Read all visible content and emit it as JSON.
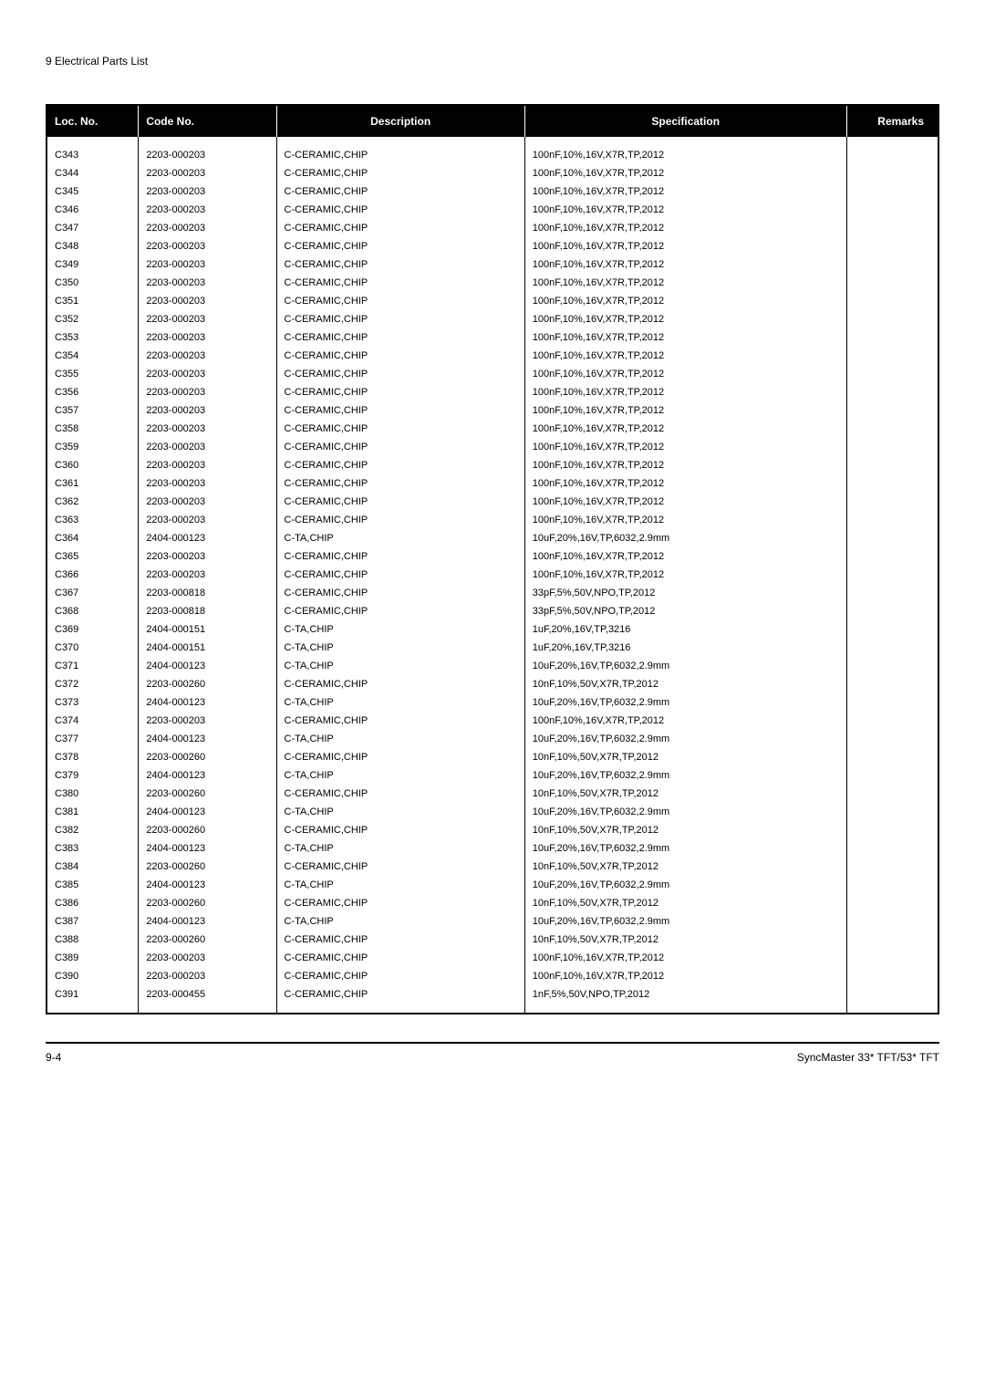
{
  "page_title": "9 Electrical Parts List",
  "table": {
    "headers": {
      "loc": "Loc. No.",
      "code": "Code No.",
      "desc": "Description",
      "spec": "Specification",
      "remarks": "Remarks"
    },
    "rows": [
      {
        "loc": "C343",
        "code": "2203-000203",
        "desc": "C-CERAMIC,CHIP",
        "spec": "100nF,10%,16V,X7R,TP,2012",
        "remarks": ""
      },
      {
        "loc": "C344",
        "code": "2203-000203",
        "desc": "C-CERAMIC,CHIP",
        "spec": "100nF,10%,16V,X7R,TP,2012",
        "remarks": ""
      },
      {
        "loc": "C345",
        "code": "2203-000203",
        "desc": "C-CERAMIC,CHIP",
        "spec": "100nF,10%,16V,X7R,TP,2012",
        "remarks": ""
      },
      {
        "loc": "C346",
        "code": "2203-000203",
        "desc": "C-CERAMIC,CHIP",
        "spec": "100nF,10%,16V,X7R,TP,2012",
        "remarks": ""
      },
      {
        "loc": "C347",
        "code": "2203-000203",
        "desc": "C-CERAMIC,CHIP",
        "spec": "100nF,10%,16V,X7R,TP,2012",
        "remarks": ""
      },
      {
        "loc": "C348",
        "code": "2203-000203",
        "desc": "C-CERAMIC,CHIP",
        "spec": "100nF,10%,16V,X7R,TP,2012",
        "remarks": ""
      },
      {
        "loc": "C349",
        "code": "2203-000203",
        "desc": "C-CERAMIC,CHIP",
        "spec": "100nF,10%,16V,X7R,TP,2012",
        "remarks": ""
      },
      {
        "loc": "C350",
        "code": "2203-000203",
        "desc": "C-CERAMIC,CHIP",
        "spec": "100nF,10%,16V,X7R,TP,2012",
        "remarks": ""
      },
      {
        "loc": "C351",
        "code": "2203-000203",
        "desc": "C-CERAMIC,CHIP",
        "spec": "100nF,10%,16V,X7R,TP,2012",
        "remarks": ""
      },
      {
        "loc": "C352",
        "code": "2203-000203",
        "desc": "C-CERAMIC,CHIP",
        "spec": "100nF,10%,16V,X7R,TP,2012",
        "remarks": ""
      },
      {
        "loc": "C353",
        "code": "2203-000203",
        "desc": "C-CERAMIC,CHIP",
        "spec": "100nF,10%,16V,X7R,TP,2012",
        "remarks": ""
      },
      {
        "loc": "C354",
        "code": "2203-000203",
        "desc": "C-CERAMIC,CHIP",
        "spec": "100nF,10%,16V,X7R,TP,2012",
        "remarks": ""
      },
      {
        "loc": "C355",
        "code": "2203-000203",
        "desc": "C-CERAMIC,CHIP",
        "spec": "100nF,10%,16V,X7R,TP,2012",
        "remarks": ""
      },
      {
        "loc": "C356",
        "code": "2203-000203",
        "desc": "C-CERAMIC,CHIP",
        "spec": "100nF,10%,16V,X7R,TP,2012",
        "remarks": ""
      },
      {
        "loc": "C357",
        "code": "2203-000203",
        "desc": "C-CERAMIC,CHIP",
        "spec": "100nF,10%,16V,X7R,TP,2012",
        "remarks": ""
      },
      {
        "loc": "C358",
        "code": "2203-000203",
        "desc": "C-CERAMIC,CHIP",
        "spec": "100nF,10%,16V,X7R,TP,2012",
        "remarks": ""
      },
      {
        "loc": "C359",
        "code": "2203-000203",
        "desc": "C-CERAMIC,CHIP",
        "spec": "100nF,10%,16V,X7R,TP,2012",
        "remarks": ""
      },
      {
        "loc": "C360",
        "code": "2203-000203",
        "desc": "C-CERAMIC,CHIP",
        "spec": "100nF,10%,16V,X7R,TP,2012",
        "remarks": ""
      },
      {
        "loc": "C361",
        "code": "2203-000203",
        "desc": "C-CERAMIC,CHIP",
        "spec": "100nF,10%,16V,X7R,TP,2012",
        "remarks": ""
      },
      {
        "loc": "C362",
        "code": "2203-000203",
        "desc": "C-CERAMIC,CHIP",
        "spec": "100nF,10%,16V,X7R,TP,2012",
        "remarks": ""
      },
      {
        "loc": "C363",
        "code": "2203-000203",
        "desc": "C-CERAMIC,CHIP",
        "spec": "100nF,10%,16V,X7R,TP,2012",
        "remarks": ""
      },
      {
        "loc": "C364",
        "code": "2404-000123",
        "desc": "C-TA,CHIP",
        "spec": "10uF,20%,16V,TP,6032,2.9mm",
        "remarks": ""
      },
      {
        "loc": "C365",
        "code": "2203-000203",
        "desc": "C-CERAMIC,CHIP",
        "spec": "100nF,10%,16V,X7R,TP,2012",
        "remarks": ""
      },
      {
        "loc": "C366",
        "code": "2203-000203",
        "desc": "C-CERAMIC,CHIP",
        "spec": "100nF,10%,16V,X7R,TP,2012",
        "remarks": ""
      },
      {
        "loc": "C367",
        "code": "2203-000818",
        "desc": "C-CERAMIC,CHIP",
        "spec": "33pF,5%,50V,NPO,TP,2012",
        "remarks": ""
      },
      {
        "loc": "C368",
        "code": "2203-000818",
        "desc": "C-CERAMIC,CHIP",
        "spec": "33pF,5%,50V,NPO,TP,2012",
        "remarks": ""
      },
      {
        "loc": "C369",
        "code": "2404-000151",
        "desc": "C-TA,CHIP",
        "spec": "1uF,20%,16V,TP,3216",
        "remarks": ""
      },
      {
        "loc": "C370",
        "code": "2404-000151",
        "desc": "C-TA,CHIP",
        "spec": "1uF,20%,16V,TP,3216",
        "remarks": ""
      },
      {
        "loc": "C371",
        "code": "2404-000123",
        "desc": "C-TA,CHIP",
        "spec": "10uF,20%,16V,TP,6032,2.9mm",
        "remarks": ""
      },
      {
        "loc": "C372",
        "code": "2203-000260",
        "desc": "C-CERAMIC,CHIP",
        "spec": "10nF,10%,50V,X7R,TP,2012",
        "remarks": ""
      },
      {
        "loc": "C373",
        "code": "2404-000123",
        "desc": "C-TA,CHIP",
        "spec": "10uF,20%,16V,TP,6032,2.9mm",
        "remarks": ""
      },
      {
        "loc": "C374",
        "code": "2203-000203",
        "desc": "C-CERAMIC,CHIP",
        "spec": "100nF,10%,16V,X7R,TP,2012",
        "remarks": ""
      },
      {
        "loc": "C377",
        "code": "2404-000123",
        "desc": "C-TA,CHIP",
        "spec": "10uF,20%,16V,TP,6032,2.9mm",
        "remarks": ""
      },
      {
        "loc": "C378",
        "code": "2203-000260",
        "desc": "C-CERAMIC,CHIP",
        "spec": "10nF,10%,50V,X7R,TP,2012",
        "remarks": ""
      },
      {
        "loc": "C379",
        "code": "2404-000123",
        "desc": "C-TA,CHIP",
        "spec": "10uF,20%,16V,TP,6032,2.9mm",
        "remarks": ""
      },
      {
        "loc": "C380",
        "code": "2203-000260",
        "desc": "C-CERAMIC,CHIP",
        "spec": "10nF,10%,50V,X7R,TP,2012",
        "remarks": ""
      },
      {
        "loc": "C381",
        "code": "2404-000123",
        "desc": "C-TA,CHIP",
        "spec": "10uF,20%,16V,TP,6032,2.9mm",
        "remarks": ""
      },
      {
        "loc": "C382",
        "code": "2203-000260",
        "desc": "C-CERAMIC,CHIP",
        "spec": "10nF,10%,50V,X7R,TP,2012",
        "remarks": ""
      },
      {
        "loc": "C383",
        "code": "2404-000123",
        "desc": "C-TA,CHIP",
        "spec": "10uF,20%,16V,TP,6032,2.9mm",
        "remarks": ""
      },
      {
        "loc": "C384",
        "code": "2203-000260",
        "desc": "C-CERAMIC,CHIP",
        "spec": "10nF,10%,50V,X7R,TP,2012",
        "remarks": ""
      },
      {
        "loc": "C385",
        "code": "2404-000123",
        "desc": "C-TA,CHIP",
        "spec": "10uF,20%,16V,TP,6032,2.9mm",
        "remarks": ""
      },
      {
        "loc": "C386",
        "code": "2203-000260",
        "desc": "C-CERAMIC,CHIP",
        "spec": "10nF,10%,50V,X7R,TP,2012",
        "remarks": ""
      },
      {
        "loc": "C387",
        "code": "2404-000123",
        "desc": "C-TA,CHIP",
        "spec": "10uF,20%,16V,TP,6032,2.9mm",
        "remarks": ""
      },
      {
        "loc": "C388",
        "code": "2203-000260",
        "desc": "C-CERAMIC,CHIP",
        "spec": "10nF,10%,50V,X7R,TP,2012",
        "remarks": ""
      },
      {
        "loc": "C389",
        "code": "2203-000203",
        "desc": "C-CERAMIC,CHIP",
        "spec": "100nF,10%,16V,X7R,TP,2012",
        "remarks": ""
      },
      {
        "loc": "C390",
        "code": "2203-000203",
        "desc": "C-CERAMIC,CHIP",
        "spec": "100nF,10%,16V,X7R,TP,2012",
        "remarks": ""
      },
      {
        "loc": "C391",
        "code": "2203-000455",
        "desc": "C-CERAMIC,CHIP",
        "spec": "1nF,5%,50V,NPO,TP,2012",
        "remarks": ""
      }
    ]
  },
  "footer": {
    "left": "9-4",
    "right": "SyncMaster 33* TFT/53* TFT"
  },
  "styling": {
    "header_bg": "#000000",
    "header_text": "#ffffff",
    "body_text": "#000000",
    "border_color": "#000000",
    "title_fontsize": 12,
    "header_fontsize": 12,
    "cell_fontsize": 11,
    "footer_fontsize": 12
  }
}
